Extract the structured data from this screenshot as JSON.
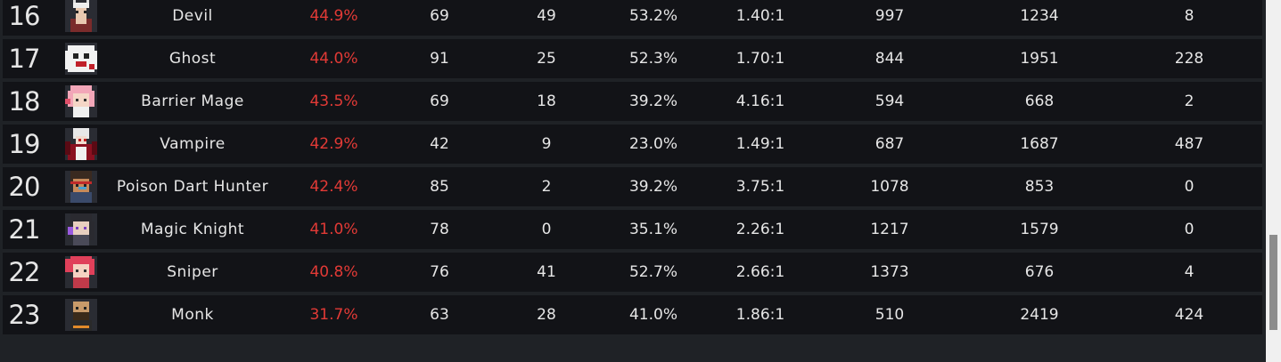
{
  "rows": [
    {
      "rank": "16",
      "name": "Devil",
      "winrate": "44.9%",
      "c1": "69",
      "c2": "49",
      "c3": "53.2%",
      "c4": "1.40:1",
      "c5": "997",
      "c6": "1234",
      "c7": "8",
      "avatar": "devil-avatar"
    },
    {
      "rank": "17",
      "name": "Ghost",
      "winrate": "44.0%",
      "c1": "91",
      "c2": "25",
      "c3": "52.3%",
      "c4": "1.70:1",
      "c5": "844",
      "c6": "1951",
      "c7": "228",
      "avatar": "ghost-avatar"
    },
    {
      "rank": "18",
      "name": "Barrier Mage",
      "winrate": "43.5%",
      "c1": "69",
      "c2": "18",
      "c3": "39.2%",
      "c4": "4.16:1",
      "c5": "594",
      "c6": "668",
      "c7": "2",
      "avatar": "barrier-mage-avatar"
    },
    {
      "rank": "19",
      "name": "Vampire",
      "winrate": "42.9%",
      "c1": "42",
      "c2": "9",
      "c3": "23.0%",
      "c4": "1.49:1",
      "c5": "687",
      "c6": "1687",
      "c7": "487",
      "avatar": "vampire-avatar"
    },
    {
      "rank": "20",
      "name": "Poison Dart Hunter",
      "winrate": "42.4%",
      "c1": "85",
      "c2": "2",
      "c3": "39.2%",
      "c4": "3.75:1",
      "c5": "1078",
      "c6": "853",
      "c7": "0",
      "avatar": "poison-dart-hunter-avatar"
    },
    {
      "rank": "21",
      "name": "Magic Knight",
      "winrate": "41.0%",
      "c1": "78",
      "c2": "0",
      "c3": "35.1%",
      "c4": "2.26:1",
      "c5": "1217",
      "c6": "1579",
      "c7": "0",
      "avatar": "magic-knight-avatar"
    },
    {
      "rank": "22",
      "name": "Sniper",
      "winrate": "40.8%",
      "c1": "76",
      "c2": "41",
      "c3": "52.7%",
      "c4": "2.66:1",
      "c5": "1373",
      "c6": "676",
      "c7": "4",
      "avatar": "sniper-avatar"
    },
    {
      "rank": "23",
      "name": "Monk",
      "winrate": "31.7%",
      "c1": "63",
      "c2": "28",
      "c3": "41.0%",
      "c4": "1.86:1",
      "c5": "510",
      "c6": "2419",
      "c7": "424",
      "avatar": "monk-avatar"
    }
  ],
  "colors": {
    "row_bg": "#121317",
    "page_bg": "#1f2226",
    "winrate_red": "#e23a36",
    "text": "#e6e6e6"
  }
}
